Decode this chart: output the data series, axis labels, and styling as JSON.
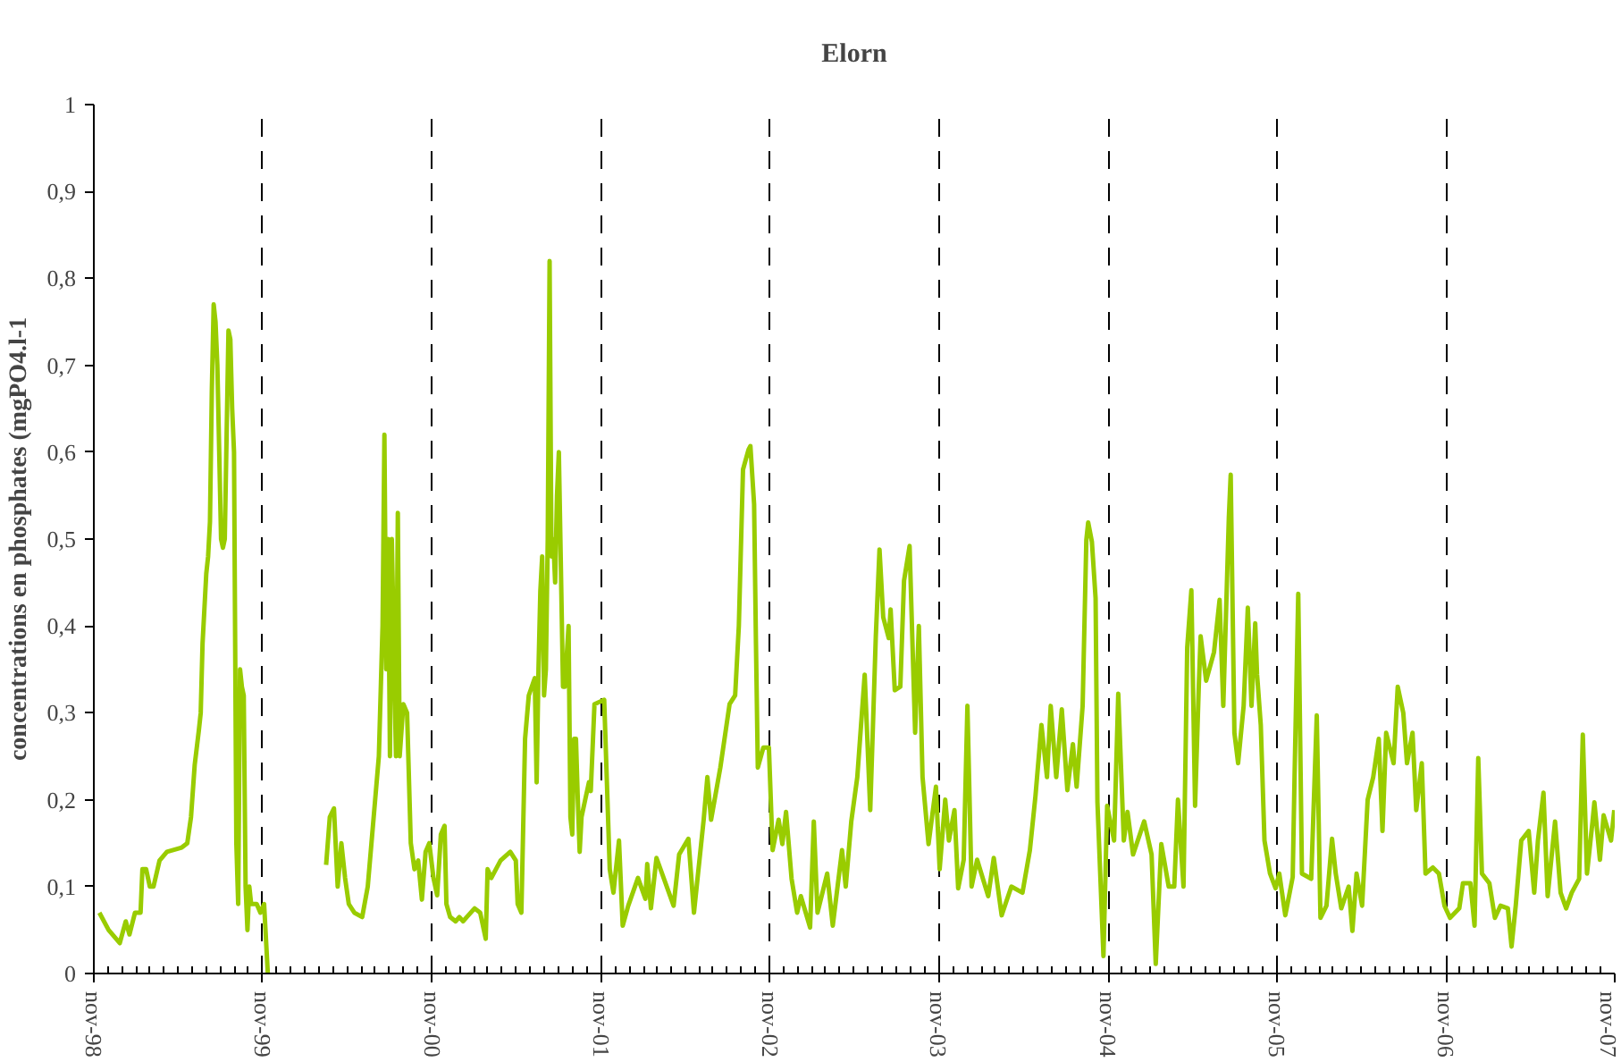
{
  "chart_data": {
    "type": "line",
    "title": "Elorn",
    "ylabel": "concentrations en phosphates (mgPO4.l-1",
    "xlim": [
      "1998-11-01",
      "2007-11-01"
    ],
    "ylim": [
      0,
      1
    ],
    "xticks": [
      {
        "value": "1998-11",
        "label": "nov-98"
      },
      {
        "value": "1999-11",
        "label": "nov-99"
      },
      {
        "value": "2000-11",
        "label": "nov-00"
      },
      {
        "value": "2001-11",
        "label": "nov-01"
      },
      {
        "value": "2002-11",
        "label": "nov-02"
      },
      {
        "value": "2003-11",
        "label": "nov-03"
      },
      {
        "value": "2004-11",
        "label": "nov-04"
      },
      {
        "value": "2005-11",
        "label": "nov-05"
      },
      {
        "value": "2006-11",
        "label": "nov-06"
      },
      {
        "value": "2007-11",
        "label": "nov-07"
      }
    ],
    "yticks": [
      0,
      {
        "value": 0.1,
        "label": "0,1"
      },
      {
        "value": 0.2,
        "label": "0,2"
      },
      {
        "value": 0.3,
        "label": "0,3"
      },
      {
        "value": 0.4,
        "label": "0,4"
      },
      {
        "value": 0.5,
        "label": "0,5"
      },
      {
        "value": 0.6,
        "label": "0,6"
      },
      {
        "value": 0.7,
        "label": "0,7"
      },
      {
        "value": 0.8,
        "label": "0,8"
      },
      {
        "value": 0.9,
        "label": "0,9"
      },
      1
    ],
    "grid": "x",
    "line_style": "solid",
    "series": [
      {
        "color": "#99cc00",
        "x": [
          "1998-11-13",
          "1998-12-03",
          "1998-12-27",
          "1999-01-09",
          "1999-01-17",
          "1999-01-29",
          "1999-02-10",
          "1999-02-14",
          "1999-02-22",
          "1999-03-02",
          "1999-03-10",
          "1999-03-23",
          "1999-04-08",
          "1999-05-10",
          "1999-05-22",
          "1999-05-30",
          "1999-06-07",
          "1999-06-16",
          "1999-06-20",
          "1999-06-24",
          "1999-06-28",
          "1999-07-02",
          "1999-07-06",
          "1999-07-10",
          "1999-07-14",
          "1999-07-18",
          "1999-07-22",
          "1999-07-26",
          "1999-07-30",
          "1999-08-03",
          "1999-08-07",
          "1999-08-11",
          "1999-08-15",
          "1999-08-19",
          "1999-08-23",
          "1999-08-27",
          "1999-08-31",
          "1999-09-05",
          "1999-09-09",
          "1999-09-13",
          "1999-09-17",
          "1999-09-21",
          "1999-09-25",
          "1999-09-29",
          "1999-10-03",
          "1999-10-07",
          "1999-10-19",
          "1999-10-27",
          "1999-11-04",
          "1999-11-12",
          "2000-01-01",
          "2000-03-17",
          "2000-03-25",
          "2000-04-03",
          "2000-04-11",
          "2000-04-19",
          "2000-04-27",
          "2000-05-05",
          "2000-05-17",
          "2000-06-03",
          "2000-06-15",
          "2000-06-23",
          "2000-07-01",
          "2000-07-09",
          "2000-07-17",
          "2000-07-21",
          "2000-07-25",
          "2000-07-29",
          "2000-08-02",
          "2000-08-06",
          "2000-08-15",
          "2000-08-19",
          "2000-08-23",
          "2000-08-31",
          "2000-09-08",
          "2000-09-16",
          "2000-09-24",
          "2000-10-02",
          "2000-10-10",
          "2000-10-18",
          "2000-10-26",
          "2000-11-04",
          "2000-11-12",
          "2000-11-20",
          "2000-11-28",
          "2000-12-02",
          "2000-12-10",
          "2000-12-22",
          "2000-12-30",
          "2001-01-07",
          "2001-01-15",
          "2001-02-01",
          "2001-02-13",
          "2001-02-21",
          "2001-02-25",
          "2001-03-01",
          "2001-03-09",
          "2001-03-29",
          "2001-04-19",
          "2001-05-01",
          "2001-05-05",
          "2001-05-13",
          "2001-05-21",
          "2001-05-29",
          "2001-06-11",
          "2001-06-15",
          "2001-06-19",
          "2001-06-23",
          "2001-06-27",
          "2001-07-01",
          "2001-07-05",
          "2001-07-09",
          "2001-07-13",
          "2001-07-17",
          "2001-07-21",
          "2001-07-25",
          "2001-07-29",
          "2001-08-02",
          "2001-08-11",
          "2001-08-15",
          "2001-08-23",
          "2001-08-27",
          "2001-08-31",
          "2001-09-04",
          "2001-09-08",
          "2001-09-12",
          "2001-09-16",
          "2001-09-20",
          "2001-09-28",
          "2001-10-06",
          "2001-10-10",
          "2001-10-18",
          "2001-11-08",
          "2001-11-20",
          "2001-11-28",
          "2001-12-10",
          "2001-12-18",
          "2001-12-30",
          "2002-01-20",
          "2002-02-05",
          "2002-02-09",
          "2002-02-17",
          "2002-03-01",
          "2002-04-07",
          "2002-04-19",
          "2002-05-09",
          "2002-05-21",
          "2002-06-11",
          "2002-06-19",
          "2002-06-27",
          "2002-07-17",
          "2002-08-06",
          "2002-08-18",
          "2002-08-26",
          "2002-09-04",
          "2002-09-16",
          "2002-09-20",
          "2002-09-28",
          "2002-10-02",
          "2002-10-06",
          "2002-10-18",
          "2002-10-30",
          "2002-11-07",
          "2002-11-20",
          "2002-11-28",
          "2002-12-06",
          "2002-12-18",
          "2002-12-30",
          "2003-01-07",
          "2003-01-27",
          "2003-02-04",
          "2003-02-12",
          "2003-03-05",
          "2003-03-17",
          "2003-04-06",
          "2003-04-14",
          "2003-04-26",
          "2003-05-09",
          "2003-05-25",
          "2003-06-06",
          "2003-06-18",
          "2003-06-26",
          "2003-07-04",
          "2003-07-16",
          "2003-07-20",
          "2003-07-29",
          "2003-08-10",
          "2003-08-18",
          "2003-08-30",
          "2003-09-11",
          "2003-09-19",
          "2003-09-27",
          "2003-10-10",
          "2003-10-26",
          "2003-11-03",
          "2003-11-15",
          "2003-11-23",
          "2003-12-05",
          "2003-12-13",
          "2003-12-25",
          "2004-01-02",
          "2004-01-11",
          "2004-01-23",
          "2004-02-16",
          "2004-02-28",
          "2004-03-16",
          "2004-04-06",
          "2004-04-30",
          "2004-05-16",
          "2004-05-28",
          "2004-06-10",
          "2004-06-22",
          "2004-06-30",
          "2004-07-12",
          "2004-07-24",
          "2004-08-05",
          "2004-08-17",
          "2004-08-25",
          "2004-09-07",
          "2004-09-15",
          "2004-09-19",
          "2004-09-27",
          "2004-10-05",
          "2004-10-09",
          "2004-10-22",
          "2004-10-30",
          "2004-11-14",
          "2004-11-23",
          "2004-12-05",
          "2004-12-13",
          "2004-12-25",
          "2005-01-18",
          "2005-02-03",
          "2005-02-12",
          "2005-02-24",
          "2005-03-12",
          "2005-03-24",
          "2005-04-01",
          "2005-04-13",
          "2005-04-21",
          "2005-04-30",
          "2005-05-08",
          "2005-05-16",
          "2005-05-20",
          "2005-06-01",
          "2005-06-18",
          "2005-06-30",
          "2005-07-08",
          "2005-07-20",
          "2005-07-24",
          "2005-08-01",
          "2005-08-09",
          "2005-08-21",
          "2005-08-30",
          "2005-09-07",
          "2005-09-15",
          "2005-09-19",
          "2005-09-27",
          "2005-10-05",
          "2005-10-17",
          "2005-10-29",
          "2005-11-06",
          "2005-11-19",
          "2005-12-05",
          "2005-12-09",
          "2005-12-17",
          "2005-12-25",
          "2006-01-14",
          "2006-01-26",
          "2006-02-03",
          "2006-02-16",
          "2006-02-28",
          "2006-03-08",
          "2006-03-20",
          "2006-04-05",
          "2006-04-13",
          "2006-04-22",
          "2006-05-04",
          "2006-05-16",
          "2006-05-28",
          "2006-06-09",
          "2006-06-17",
          "2006-06-25",
          "2006-07-11",
          "2006-07-20",
          "2006-08-01",
          "2006-08-09",
          "2006-08-21",
          "2006-08-29",
          "2006-09-10",
          "2006-09-18",
          "2006-10-04",
          "2006-10-17",
          "2006-10-29",
          "2006-11-10",
          "2006-11-30",
          "2006-12-08",
          "2006-12-24",
          "2007-01-02",
          "2007-01-10",
          "2007-01-18",
          "2007-02-03",
          "2007-02-15",
          "2007-02-27",
          "2007-03-15",
          "2007-03-23",
          "2007-04-01",
          "2007-04-13",
          "2007-04-29",
          "2007-05-11",
          "2007-05-19",
          "2007-05-31",
          "2007-06-09",
          "2007-06-25",
          "2007-07-07",
          "2007-07-19",
          "2007-07-31",
          "2007-08-16",
          "2007-08-24",
          "2007-09-02",
          "2007-09-14",
          "2007-09-18",
          "2007-09-30",
          "2007-10-08",
          "2007-10-24",
          "2007-10-31"
        ],
        "values": [
          0.07,
          0.05,
          0.035,
          0.06,
          0.045,
          0.07,
          0.07,
          0.12,
          0.12,
          0.1,
          0.1,
          0.13,
          0.14,
          0.145,
          0.15,
          0.18,
          0.24,
          0.28,
          0.3,
          0.38,
          0.42,
          0.46,
          0.48,
          0.52,
          0.67,
          0.77,
          0.75,
          0.7,
          0.6,
          0.5,
          0.49,
          0.5,
          0.62,
          0.74,
          0.73,
          0.65,
          0.6,
          0.15,
          0.08,
          0.35,
          0.33,
          0.32,
          0.1,
          0.05,
          0.1,
          0.08,
          0.08,
          0.07,
          0.08,
          0.0,
          null,
          0.125,
          0.18,
          0.19,
          0.1,
          0.15,
          0.11,
          0.08,
          0.07,
          0.065,
          0.1,
          0.15,
          0.2,
          0.25,
          0.4,
          0.62,
          0.35,
          0.5,
          0.25,
          0.5,
          0.25,
          0.53,
          0.25,
          0.31,
          0.3,
          0.15,
          0.12,
          0.13,
          0.085,
          0.14,
          0.15,
          0.11,
          0.09,
          0.16,
          0.17,
          0.08,
          0.065,
          0.06,
          0.065,
          0.06,
          0.065,
          0.075,
          0.07,
          0.05,
          0.04,
          0.12,
          0.11,
          0.13,
          0.14,
          0.13,
          0.08,
          0.07,
          0.27,
          0.32,
          0.34,
          0.22,
          0.35,
          0.44,
          0.48,
          0.32,
          0.35,
          0.5,
          0.82,
          0.48,
          0.5,
          0.45,
          0.55,
          0.6,
          0.33,
          0.33,
          0.4,
          0.18,
          0.16,
          0.27,
          0.27,
          0.2,
          0.14,
          0.18,
          0.2,
          0.22,
          0.21,
          0.31,
          0.315,
          0.12,
          0.093,
          0.153,
          0.055,
          0.078,
          0.11,
          0.086,
          0.126,
          0.075,
          0.133,
          0.078,
          0.137,
          0.155,
          0.07,
          0.177,
          0.226,
          0.177,
          0.237,
          0.31,
          0.32,
          0.4,
          0.58,
          0.603,
          0.607,
          0.54,
          0.38,
          0.237,
          0.26,
          0.26,
          0.142,
          0.177,
          0.149,
          0.186,
          0.109,
          0.07,
          0.089,
          0.053,
          0.175,
          0.07,
          0.115,
          0.055,
          0.142,
          0.1,
          0.175,
          0.226,
          0.344,
          0.188,
          0.388,
          0.488,
          0.41,
          0.386,
          0.419,
          0.326,
          0.33,
          0.452,
          0.492,
          0.277,
          0.4,
          0.226,
          0.149,
          0.215,
          0.12,
          0.2,
          0.153,
          0.188,
          0.098,
          0.131,
          0.308,
          0.1,
          0.131,
          0.089,
          0.133,
          0.067,
          0.1,
          0.093,
          0.142,
          0.204,
          0.286,
          0.226,
          0.308,
          0.226,
          0.304,
          0.211,
          0.264,
          0.215,
          0.308,
          0.499,
          0.519,
          0.497,
          0.432,
          0.197,
          0.02,
          0.193,
          0.153,
          0.322,
          0.153,
          0.186,
          0.137,
          0.175,
          0.137,
          0.011,
          0.149,
          0.1,
          0.1,
          0.2,
          0.1,
          0.375,
          0.441,
          0.193,
          0.33,
          0.388,
          0.337,
          0.37,
          0.43,
          0.308,
          0.525,
          0.574,
          0.277,
          0.242,
          0.308,
          0.421,
          0.308,
          0.403,
          0.344,
          0.286,
          0.153,
          0.115,
          0.098,
          0.115,
          0.067,
          0.111,
          0.226,
          0.437,
          0.115,
          0.109,
          0.297,
          0.064,
          0.078,
          0.155,
          0.115,
          0.075,
          0.1,
          0.049,
          0.115,
          0.078,
          0.2,
          0.226,
          0.27,
          0.164,
          0.277,
          0.242,
          0.33,
          0.3,
          0.242,
          0.277,
          0.188,
          0.242,
          0.115,
          0.122,
          0.115,
          0.078,
          0.064,
          0.075,
          0.104,
          0.104,
          0.055,
          0.248,
          0.115,
          0.104,
          0.064,
          0.078,
          0.075,
          0.031,
          0.078,
          0.153,
          0.164,
          0.093,
          0.153,
          0.208,
          0.089,
          0.175,
          0.093,
          0.075,
          0.093,
          0.109,
          0.275,
          0.115,
          0.175,
          0.197,
          0.131,
          0.182,
          0.153,
          0.188
        ]
      }
    ]
  }
}
